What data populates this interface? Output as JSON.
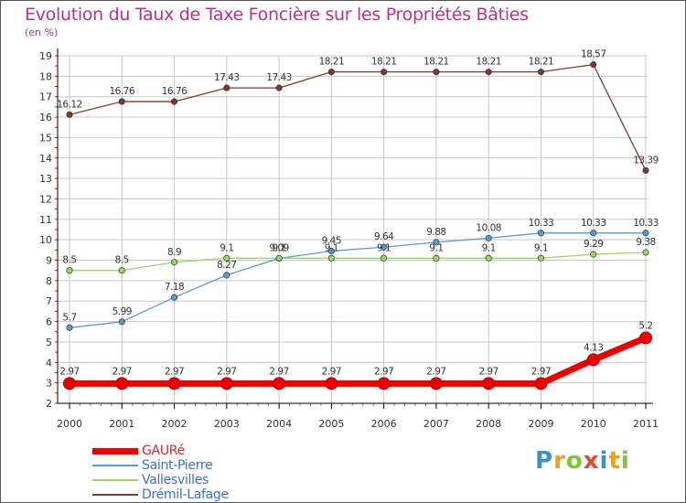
{
  "header": {
    "title": "Evolution du Taux de Taxe Foncière sur les Propriétés Bâties",
    "subtitle": "(en %)"
  },
  "brand": {
    "letters": [
      "P",
      "r",
      "o",
      "x",
      "i",
      "t",
      "i"
    ],
    "colors": [
      "#3a8fd0",
      "#e8a21c",
      "#7cc43a",
      "#e84a2a",
      "#3a8fd0",
      "#e8a21c",
      "#7cc43a"
    ]
  },
  "colors": {
    "title": "#c0307f",
    "grid": "#c8c8c8",
    "axis": "#000000",
    "tick_red": "#ff0000"
  },
  "chart_data": {
    "type": "line",
    "title": "Evolution du Taux de Taxe Foncière sur les Propriétés Bâties",
    "ylabel": "(en %)",
    "xlabel": "",
    "x": [
      "2000",
      "2001",
      "2002",
      "2003",
      "2004",
      "2005",
      "2006",
      "2007",
      "2008",
      "2009",
      "2010",
      "2011"
    ],
    "ylim": [
      2,
      19
    ],
    "yticks": [
      "2",
      "3",
      "4",
      "5",
      "6",
      "7",
      "8",
      "9",
      "10",
      "11",
      "12",
      "13",
      "14",
      "15",
      "16",
      "17",
      "18",
      "19"
    ],
    "grid": true,
    "legend_position": "bottom-left",
    "series": [
      {
        "name": "GAURé",
        "color": "#ee0000",
        "emphasis": true,
        "values": [
          2.97,
          2.97,
          2.97,
          2.97,
          2.97,
          2.97,
          2.97,
          2.97,
          2.97,
          2.97,
          4.13,
          5.2
        ],
        "labels": [
          "2.97",
          "2.97",
          "2.97",
          "2.97",
          "2.97",
          "2.97",
          "2.97",
          "2.97",
          "2.97",
          "2.97",
          "4.13",
          "5.2"
        ]
      },
      {
        "name": "Saint-Pierre",
        "color": "#5a9ad0",
        "emphasis": false,
        "values": [
          5.7,
          5.99,
          7.18,
          8.27,
          9.09,
          9.45,
          9.64,
          9.88,
          10.08,
          10.33,
          10.33,
          10.33
        ],
        "labels": [
          "5.7",
          "5.99",
          "7.18",
          "8.27",
          "9.09",
          "9.45",
          "9.64",
          "9.88",
          "10.08",
          "10.33",
          "10.33",
          "10.33"
        ]
      },
      {
        "name": "Vallesvilles",
        "color": "#98d860",
        "emphasis": false,
        "values": [
          8.5,
          8.5,
          8.9,
          9.1,
          9.1,
          9.1,
          9.1,
          9.1,
          9.1,
          9.1,
          9.29,
          9.38
        ],
        "labels": [
          "8.5",
          "8.5",
          "8.9",
          "9.1",
          "9.1",
          "9.1",
          "9.1",
          "9.1",
          "9.1",
          "9.1",
          "9.29",
          "9.38"
        ]
      },
      {
        "name": "Drémil-Lafage",
        "color": "#7a3a3a",
        "emphasis": false,
        "values": [
          16.12,
          16.76,
          16.76,
          17.43,
          17.43,
          18.21,
          18.21,
          18.21,
          18.21,
          18.21,
          18.57,
          13.39
        ],
        "labels": [
          "16.12",
          "16.76",
          "16.76",
          "17.43",
          "17.43",
          "18.21",
          "18.21",
          "18.21",
          "18.21",
          "18.21",
          "18.57",
          "13.39"
        ]
      }
    ]
  }
}
